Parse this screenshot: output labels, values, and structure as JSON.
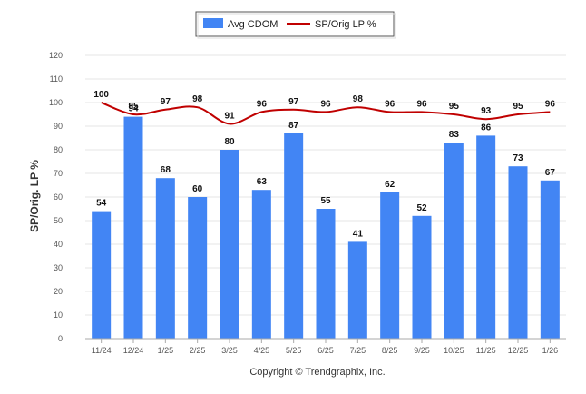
{
  "chart_data": {
    "type": "bar",
    "title": "",
    "xlabel": "",
    "ylabel": "SP/Orig. LP %",
    "ylim": [
      0,
      120
    ],
    "yticks": [
      0,
      10,
      20,
      30,
      40,
      50,
      60,
      70,
      80,
      90,
      100,
      110,
      120
    ],
    "grid": true,
    "legend_position": "top-center",
    "categories": [
      "11/24",
      "12/24",
      "1/25",
      "2/25",
      "3/25",
      "4/25",
      "5/25",
      "6/25",
      "7/25",
      "8/25",
      "9/25",
      "10/25",
      "11/25",
      "12/25",
      "1/26"
    ],
    "series": [
      {
        "name": "Avg CDOM",
        "kind": "bar",
        "color": "#4285f4",
        "values": [
          54,
          94,
          68,
          60,
          80,
          63,
          87,
          55,
          41,
          62,
          52,
          83,
          86,
          73,
          67
        ]
      },
      {
        "name": "SP/Orig LP %",
        "kind": "line",
        "color": "#c00000",
        "values": [
          100,
          95,
          97,
          98,
          91,
          96,
          97,
          96,
          98,
          96,
          96,
          95,
          93,
          95,
          96
        ]
      }
    ]
  },
  "footer": {
    "copyright": "Copyright © Trendgraphix, Inc."
  }
}
